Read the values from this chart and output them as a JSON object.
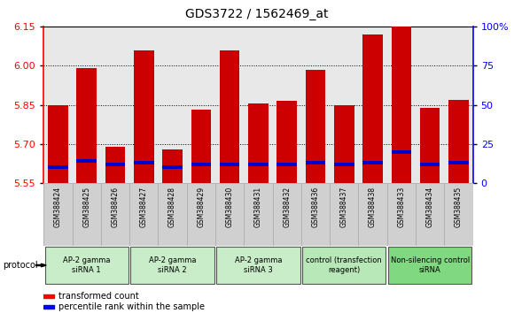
{
  "title": "GDS3722 / 1562469_at",
  "samples": [
    "GSM388424",
    "GSM388425",
    "GSM388426",
    "GSM388427",
    "GSM388428",
    "GSM388429",
    "GSM388430",
    "GSM388431",
    "GSM388432",
    "GSM388436",
    "GSM388437",
    "GSM388438",
    "GSM388433",
    "GSM388434",
    "GSM388435"
  ],
  "transformed_count": [
    5.85,
    5.99,
    5.69,
    6.06,
    5.68,
    5.83,
    6.06,
    5.855,
    5.865,
    5.985,
    5.85,
    6.12,
    6.15,
    5.84,
    5.87
  ],
  "percentile_rank": [
    10,
    14,
    12,
    13,
    10,
    12,
    12,
    12,
    12,
    13,
    12,
    13,
    20,
    12,
    13
  ],
  "groups": [
    {
      "label": "AP-2 gamma\nsiRNA 1",
      "count": 3,
      "color": "#c8edc8"
    },
    {
      "label": "AP-2 gamma\nsiRNA 2",
      "count": 3,
      "color": "#c8edc8"
    },
    {
      "label": "AP-2 gamma\nsiRNA 3",
      "count": 3,
      "color": "#c8edc8"
    },
    {
      "label": "control (transfection\nreagent)",
      "count": 3,
      "color": "#b8e8b8"
    },
    {
      "label": "Non-silencing control\nsiRNA",
      "count": 3,
      "color": "#80d880"
    }
  ],
  "ylim_left": [
    5.55,
    6.15
  ],
  "yticks_left": [
    5.55,
    5.7,
    5.85,
    6.0,
    6.15
  ],
  "ylim_right": [
    0,
    100
  ],
  "yticks_right": [
    0,
    25,
    50,
    75,
    100
  ],
  "bar_color": "#cc0000",
  "blue_marker_color": "#0000cc",
  "bar_width": 0.7,
  "background_color": "#ffffff",
  "plot_bg_color": "#e8e8e8",
  "xtick_bg_color": "#d0d0d0",
  "xtick_border_color": "#aaaaaa"
}
